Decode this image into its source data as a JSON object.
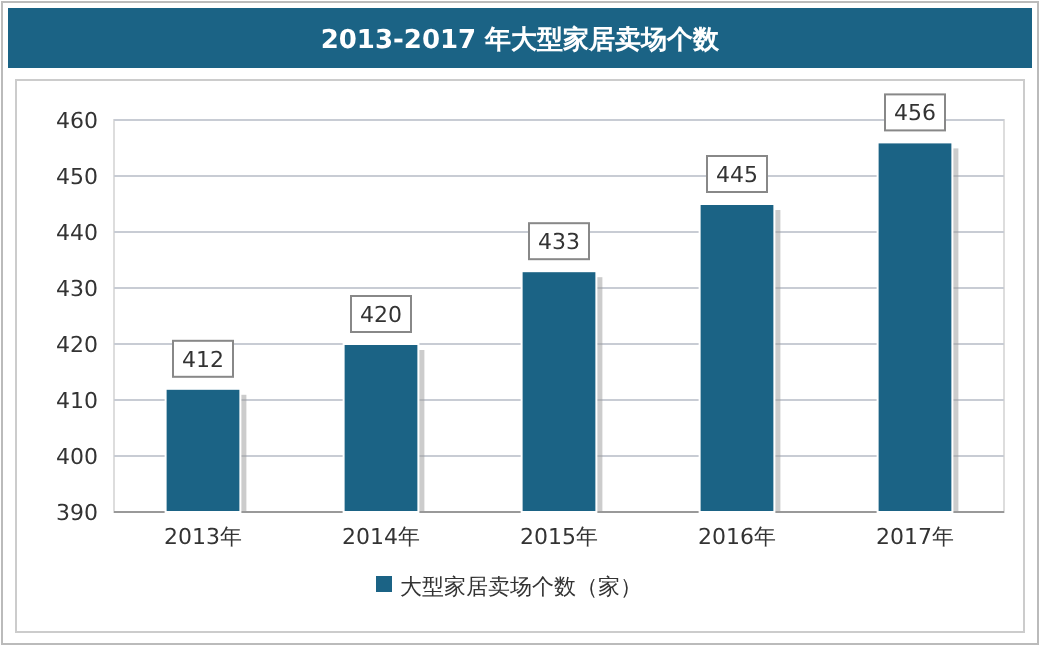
{
  "chart_data": {
    "type": "bar",
    "title": "2013-2017 年大型家居卖场个数",
    "categories": [
      "2013年",
      "2014年",
      "2015年",
      "2016年",
      "2017年"
    ],
    "series": [
      {
        "name": "大型家居卖场个数（家）",
        "color": "#1b6385",
        "values": [
          412,
          420,
          433,
          445,
          456
        ]
      }
    ],
    "ylim": [
      390,
      460
    ],
    "yticks": [
      390,
      400,
      410,
      420,
      430,
      440,
      450,
      460
    ],
    "grid": "y",
    "legend": "bottom",
    "data_labels": true
  }
}
